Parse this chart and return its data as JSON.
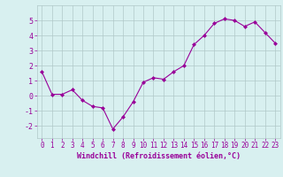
{
  "x_values": [
    0,
    1,
    2,
    3,
    4,
    5,
    6,
    7,
    8,
    9,
    10,
    11,
    12,
    13,
    14,
    15,
    16,
    17,
    18,
    19,
    20,
    21,
    22,
    23
  ],
  "y_values": [
    1.6,
    0.1,
    0.1,
    0.4,
    -0.3,
    -0.7,
    -0.8,
    -2.2,
    -1.4,
    -0.4,
    0.9,
    1.2,
    1.1,
    1.6,
    2.0,
    3.4,
    4.0,
    4.8,
    5.1,
    5.0,
    4.6,
    4.9,
    4.2,
    3.5
  ],
  "line_color": "#990099",
  "marker": "D",
  "marker_size": 2,
  "bg_color": "#d8f0f0",
  "grid_color": "#b0c8c8",
  "axis_color": "#990099",
  "tick_color": "#990099",
  "xlabel": "Windchill (Refroidissement éolien,°C)",
  "xlabel_fontsize": 6.0,
  "tick_fontsize": 5.5,
  "ytick_fontsize": 6.0,
  "ylim": [
    -2.8,
    6.0
  ],
  "xlim": [
    -0.5,
    23.5
  ],
  "yticks": [
    -2,
    -1,
    0,
    1,
    2,
    3,
    4,
    5
  ],
  "xticks": [
    0,
    1,
    2,
    3,
    4,
    5,
    6,
    7,
    8,
    9,
    10,
    11,
    12,
    13,
    14,
    15,
    16,
    17,
    18,
    19,
    20,
    21,
    22,
    23
  ]
}
